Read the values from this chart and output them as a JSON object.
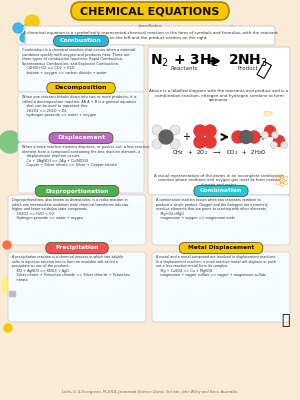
{
  "title": "CHEMICAL EQUATIONS",
  "bg": "#faebd7",
  "title_bg": "#f5c800",
  "title_color": "#1a0a00",
  "subtitle": "Jana Bieber",
  "definition": "A chemical equation is a symbolically represented chemical reaction in the form of symbols and formulas, with the reactant\nentities on the left and the product entities on the right.",
  "footer": "Lofts, G. & Evergreen, M 2018, Jacaranda Science Quest, 3rd edn, John Wiley and Sons, Australia.",
  "left_sections": [
    {
      "title": "Combustion",
      "tbg": "#29b6d4",
      "tc": "white",
      "body": "Combustion is a chemical reaction that occurs when a material\ncombines quickly with oxygen and produces heat. There are\nthree types of combustion reactions: Rapid Combustion,\nSpontaneous Combustion, and Explosive Combustion.\n    C4H10+O2 => CO2 + H2O\n    butane + oxygen => carbon dioxide + water"
    },
    {
      "title": "Decomposition",
      "tbg": "#f5c800",
      "tc": "#1a0a00",
      "body": "When one reactant breaks down into two or more products, it is\ncalled a decomposition reaction. AB A + B is a general equation\n    that can be used to represent this.\n    2H2O2 => 2H2O + O2\n    hydrogen peroxide => water + oxygen"
    },
    {
      "title": "Displacement",
      "tbg": "#ba68c8",
      "tc": "white",
      "body": "When a more reactive element displaces, or pushes out, a less reactive\nelement from a compound containing the less reactive element, a\n    displacement reaction occurs.\n    Cu + 2AgNO3 => 2Ag + Cu(NO3)2\n    Copper + Silver nitrate => Silver + Copper nitrate"
    }
  ],
  "bottom_sections": [
    {
      "title": "Disproportionation",
      "tbg": "#4caf50",
      "tc": "white",
      "body": "Disproportionation, also known as dismutation, is a redox reaction in\nwhich one intermediate oxidation state chemical transforms into two\nhigher and lower oxidation state compounds.\n    2H2O2 => H2O + O2\n    Hydrogen peroxide => water + oxygen",
      "col": 0,
      "row": 0
    },
    {
      "title": "Combination",
      "tbg": "#26c6da",
      "tc": "white",
      "body": "A combination reaction occurs when two reactants combine to\nproduce a single product. Oxygen and the halogens are extremely\nreactive elements that are prone to reacting with other elements.\n    Mg+O2=MgO\n    magnesium + oxygen => magnesium oxide",
      "col": 1,
      "row": 0
    },
    {
      "title": "Precipitation",
      "tbg": "#ef5350",
      "tc": "white",
      "body": "A precipitation reaction is a chemical process in which two soluble\nsalts in aqueous solution mix to form an insoluble salt called a\nprecipitate as one of the products.\n    KCl + AgNO3 => KNO3 + AgCl\n    Silver nitrate + Potassium chloride => Silver chloride + Potassium\n    nitrate",
      "col": 0,
      "row": 1
    },
    {
      "title": "Metal Displacement",
      "tbg": "#f5c800",
      "tc": "#1a0a00",
      "body": "A metal and a metal compound are involved in displacement reactions.\nIn a displacement reaction, a more reactive metal will displace or push\nout a less reactive metal from its complex.\n    Mg + CuSO4 => Cu + MgSO4\n    magnesium + copper sulfate => copper + magnesium sulfate",
      "col": 1,
      "row": 1
    }
  ]
}
